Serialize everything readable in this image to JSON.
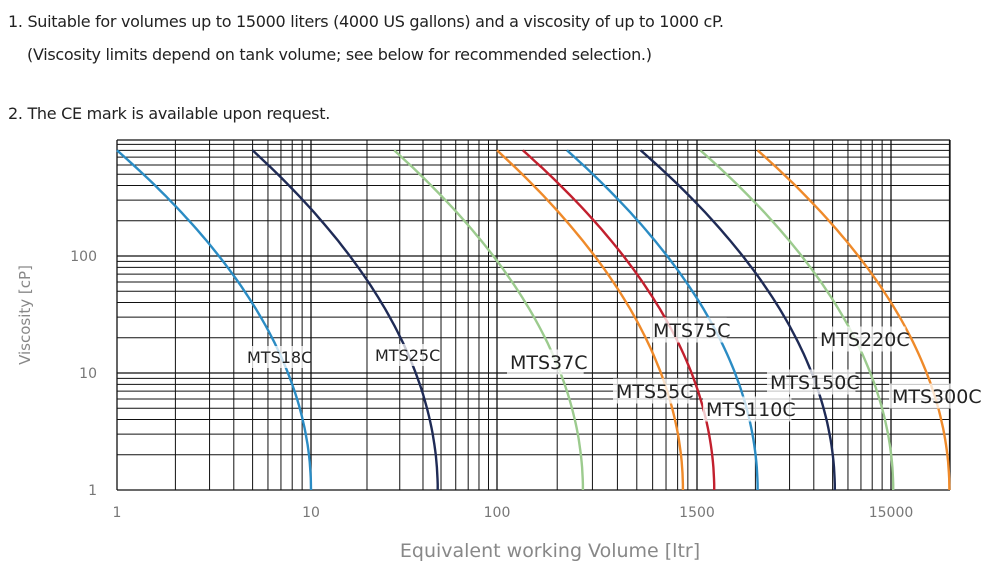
{
  "notes": {
    "note1_line1": "1. Suitable for volumes up to 15000 liters (4000 US gallons) and a viscosity of up to 1000 cP.",
    "note1_line2": "(Viscosity limits depend on tank volume; see below for recommended selection.)",
    "note2": "2.  The CE mark is available upon request."
  },
  "chart_data": {
    "type": "line",
    "title": "",
    "xlabel": "Equivalent working Volume [ltr]",
    "ylabel": "Viscosity [cP]",
    "x_scale": "log",
    "y_scale": "log",
    "x_ticks": [
      1,
      10,
      100,
      1500,
      15000
    ],
    "y_ticks": [
      1,
      10,
      100
    ],
    "xlim": [
      1,
      30000
    ],
    "ylim": [
      1,
      1000
    ],
    "grid": true,
    "legend": "inline labels",
    "series": [
      {
        "name": "MTS18C",
        "color": "#2b8cc4",
        "points": [
          [
            1,
            800
          ],
          [
            10,
            1
          ]
        ]
      },
      {
        "name": "MTS25C",
        "color": "#1f2b56",
        "points": [
          [
            5,
            800
          ],
          [
            48,
            1
          ]
        ]
      },
      {
        "name": "MTS37C",
        "color": "#9ccb8e",
        "points": [
          [
            28,
            800
          ],
          [
            320,
            1
          ]
        ]
      },
      {
        "name": "MTS55C",
        "color": "#ef8a2a",
        "points": [
          [
            100,
            800
          ],
          [
            1240,
            1
          ]
        ]
      },
      {
        "name": "MTS75C",
        "color": "#c2202e",
        "points": [
          [
            142,
            800
          ],
          [
            1840,
            1
          ]
        ]
      },
      {
        "name": "MTS110C",
        "color": "#2b8cc4",
        "points": [
          [
            258,
            800
          ],
          [
            3080,
            1
          ]
        ]
      },
      {
        "name": "MTS150C",
        "color": "#1f2b56",
        "points": [
          [
            700,
            800
          ],
          [
            7700,
            1
          ]
        ]
      },
      {
        "name": "MTS220C",
        "color": "#9ccb8e",
        "points": [
          [
            1560,
            800
          ],
          [
            15400,
            1
          ]
        ]
      },
      {
        "name": "MTS300C",
        "color": "#ef8a2a",
        "points": [
          [
            3080,
            800
          ],
          [
            30000,
            1
          ]
        ]
      }
    ]
  }
}
